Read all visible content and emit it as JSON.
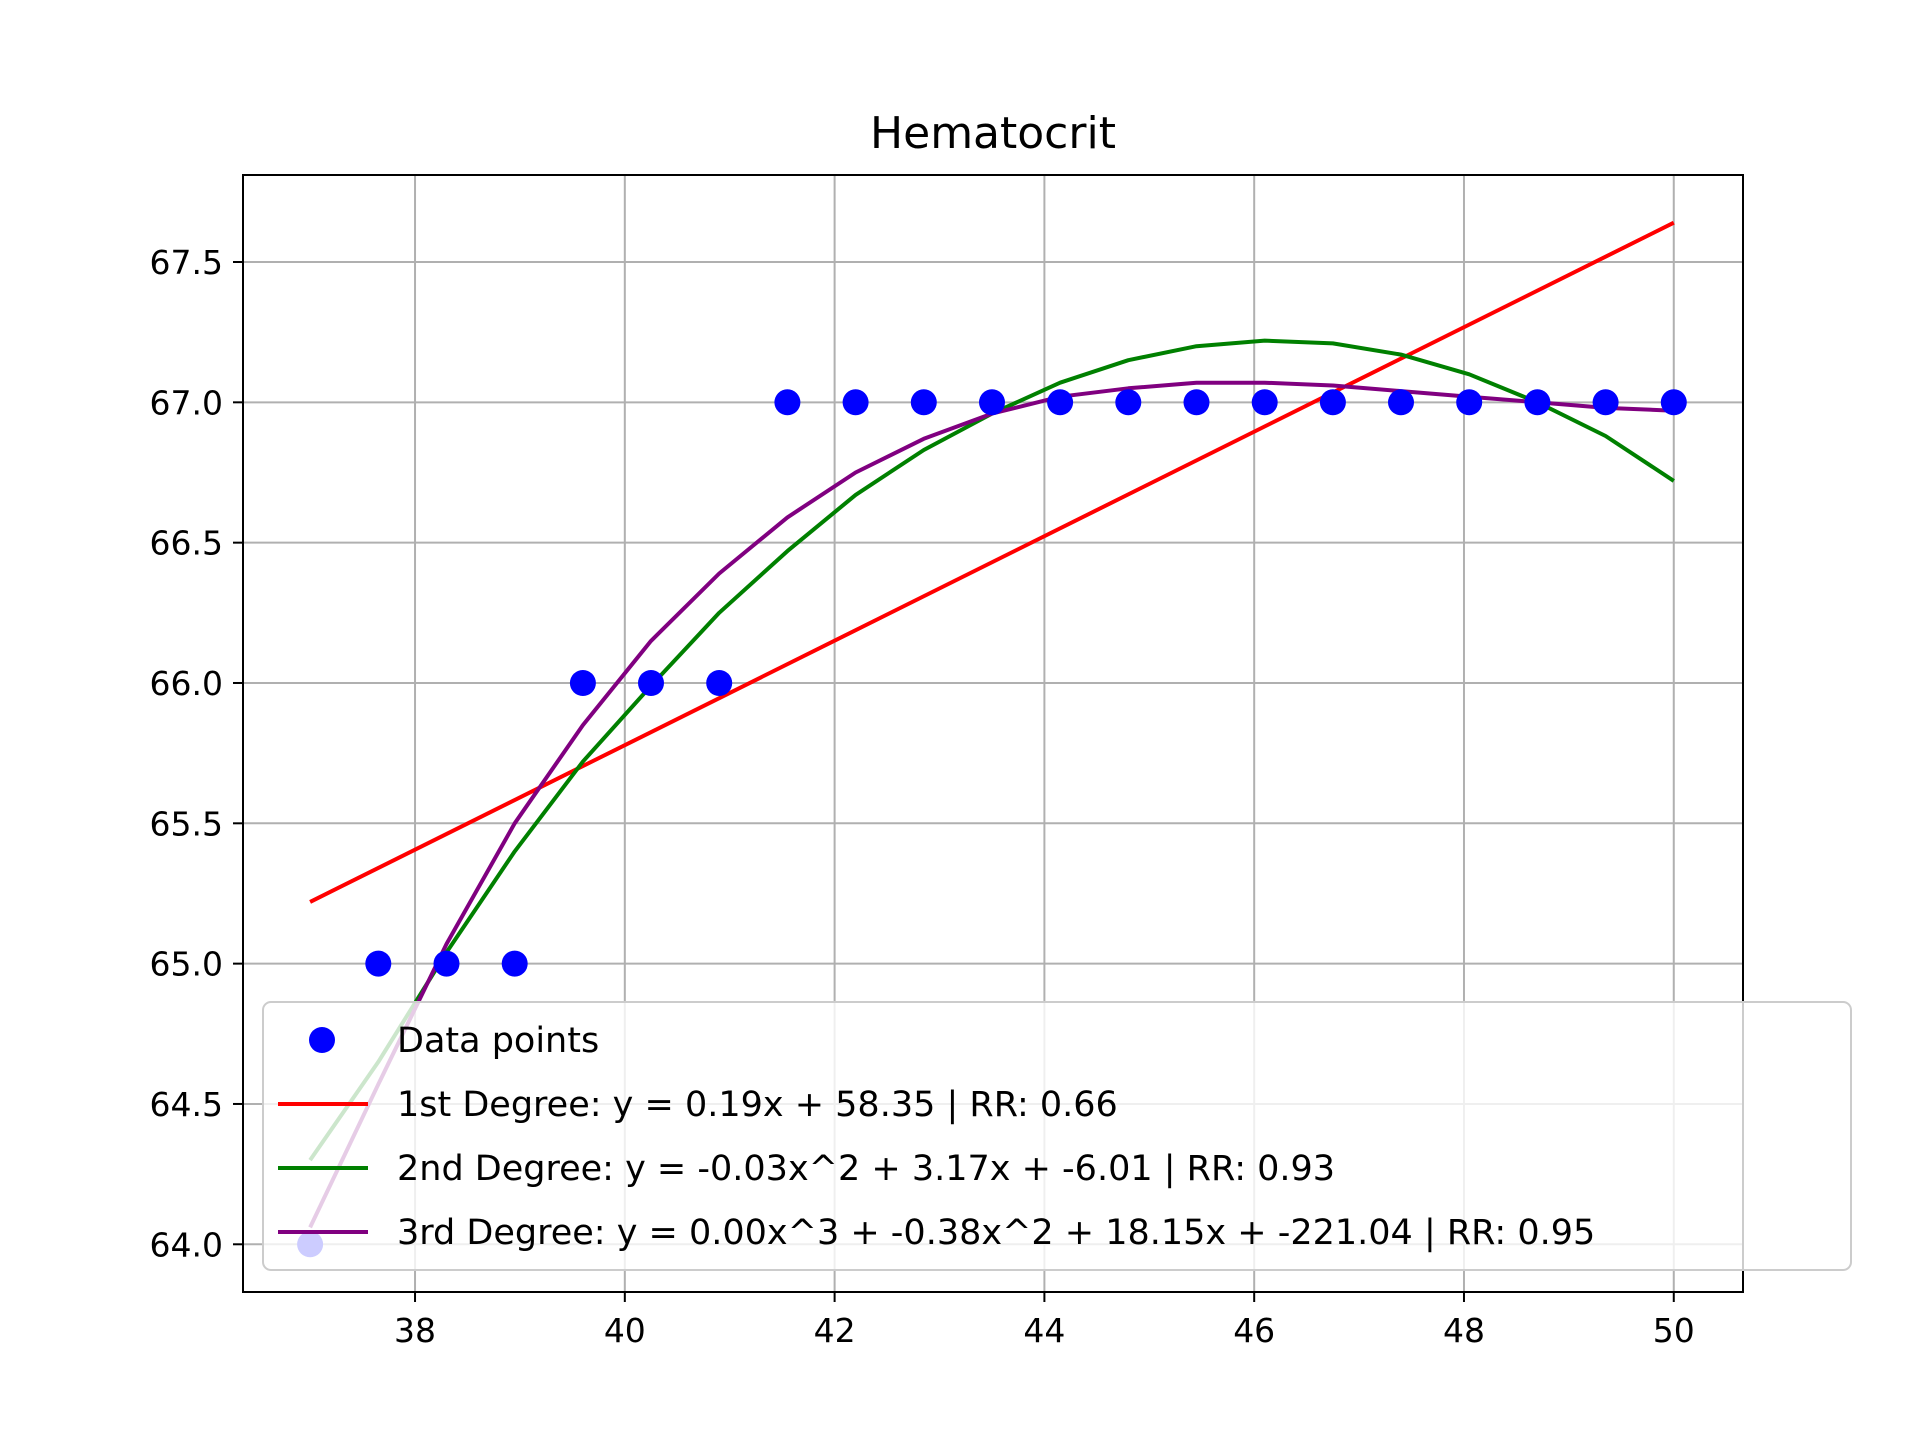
{
  "chart_data": {
    "type": "scatter",
    "title": "Hematocrit",
    "xlabel": "",
    "ylabel": "",
    "xlim": [
      36.36,
      50.66
    ],
    "ylim": [
      63.83,
      67.81
    ],
    "x_ticks": [
      38,
      40,
      42,
      44,
      46,
      48,
      50
    ],
    "x_tick_labels": [
      "38",
      "40",
      "42",
      "44",
      "46",
      "48",
      "50"
    ],
    "y_ticks": [
      64.0,
      64.5,
      65.0,
      65.5,
      66.0,
      66.5,
      67.0,
      67.5
    ],
    "y_tick_labels": [
      "64.0",
      "64.5",
      "65.0",
      "65.5",
      "66.0",
      "66.5",
      "67.0",
      "67.5"
    ],
    "grid": true,
    "legend_position": "lower-left",
    "points": {
      "name": "Data points",
      "color": "#0000ff",
      "x": [
        37.0,
        37.65,
        38.3,
        38.95,
        39.6,
        40.25,
        40.9,
        41.55,
        42.2,
        42.85,
        43.5,
        44.15,
        44.8,
        45.45,
        46.1,
        46.75,
        47.4,
        48.05,
        48.7,
        49.35,
        50.0
      ],
      "y": [
        64.0,
        65.0,
        65.0,
        65.0,
        66.0,
        66.0,
        66.0,
        67.0,
        67.0,
        67.0,
        67.0,
        67.0,
        67.0,
        67.0,
        67.0,
        67.0,
        67.0,
        67.0,
        67.0,
        67.0,
        67.0
      ]
    },
    "series": [
      {
        "name": "1st Degree: y = 0.19x + 58.35 | RR: 0.66",
        "color": "#ff0000",
        "x": [
          37.0,
          50.0
        ],
        "y": [
          65.22,
          67.64
        ]
      },
      {
        "name": "2nd Degree: y = -0.03x^2 + 3.17x + -6.01 | RR: 0.93",
        "color": "#008000",
        "x": [
          37.0,
          37.65,
          38.3,
          38.95,
          39.6,
          40.25,
          40.9,
          41.55,
          42.2,
          42.85,
          43.5,
          44.15,
          44.8,
          45.45,
          46.1,
          46.75,
          47.4,
          48.05,
          48.7,
          49.35,
          50.0
        ],
        "y": [
          64.3,
          64.65,
          65.04,
          65.4,
          65.72,
          65.99,
          66.25,
          66.47,
          66.67,
          66.83,
          66.96,
          67.07,
          67.15,
          67.2,
          67.22,
          67.21,
          67.17,
          67.1,
          67.0,
          66.88,
          66.72
        ]
      },
      {
        "name": "3rd Degree: y = 0.00x^3 + -0.38x^2 + 18.15x + -221.04 | RR: 0.95",
        "color": "#800080",
        "x": [
          37.0,
          37.65,
          38.3,
          38.95,
          39.6,
          40.25,
          40.9,
          41.55,
          42.2,
          42.85,
          43.5,
          44.15,
          44.8,
          45.45,
          46.1,
          46.75,
          47.4,
          48.05,
          48.7,
          49.35,
          50.0
        ],
        "y": [
          64.06,
          64.57,
          65.07,
          65.5,
          65.85,
          66.15,
          66.39,
          66.59,
          66.75,
          66.87,
          66.96,
          67.02,
          67.05,
          67.07,
          67.07,
          67.06,
          67.04,
          67.02,
          67.0,
          66.98,
          66.97
        ]
      }
    ]
  }
}
